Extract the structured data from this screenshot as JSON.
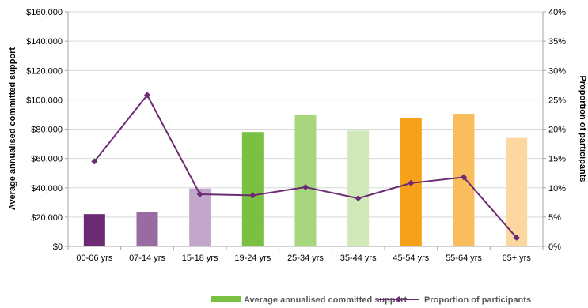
{
  "chart_data": {
    "type": "bar",
    "categories": [
      "00-06 yrs",
      "07-14 yrs",
      "15-18 yrs",
      "19-24 yrs",
      "25-34 yrs",
      "35-44 yrs",
      "45-54 yrs",
      "55-64 yrs",
      "65+ yrs"
    ],
    "series": [
      {
        "name": "Average annualised committed support",
        "type": "bar",
        "axis": "left",
        "values": [
          22000,
          23500,
          39500,
          78000,
          89500,
          79000,
          87500,
          90500,
          74000
        ],
        "colors": [
          "#6b2a73",
          "#9a6aa2",
          "#c2a7ca",
          "#7ac143",
          "#a8d67c",
          "#d1e8b9",
          "#f7a11a",
          "#f9bd5e",
          "#fcd8a0"
        ],
        "legend_color": "#7ac143"
      },
      {
        "name": "Proportion of participants",
        "type": "line",
        "axis": "right",
        "values": [
          0.145,
          0.258,
          0.089,
          0.087,
          0.101,
          0.082,
          0.108,
          0.118,
          0.015
        ],
        "color": "#6b2a73"
      }
    ],
    "y_left": {
      "label": "Average annualised committed support",
      "ylim": [
        0,
        160000
      ],
      "ticks": [
        0,
        20000,
        40000,
        60000,
        80000,
        100000,
        120000,
        140000,
        160000
      ],
      "tick_labels": [
        "$0",
        "$20,000",
        "$40,000",
        "$60,000",
        "$80,000",
        "$100,000",
        "$120,000",
        "$140,000",
        "$160,000"
      ]
    },
    "y_right": {
      "label": "Proportion of participants",
      "ylim": [
        0,
        0.4
      ],
      "ticks": [
        0,
        0.05,
        0.1,
        0.15,
        0.2,
        0.25,
        0.3,
        0.35,
        0.4
      ],
      "tick_labels": [
        "0%",
        "5%",
        "10%",
        "15%",
        "20%",
        "25%",
        "30%",
        "35%",
        "40%"
      ]
    },
    "grid": true,
    "legend_position": "bottom"
  }
}
